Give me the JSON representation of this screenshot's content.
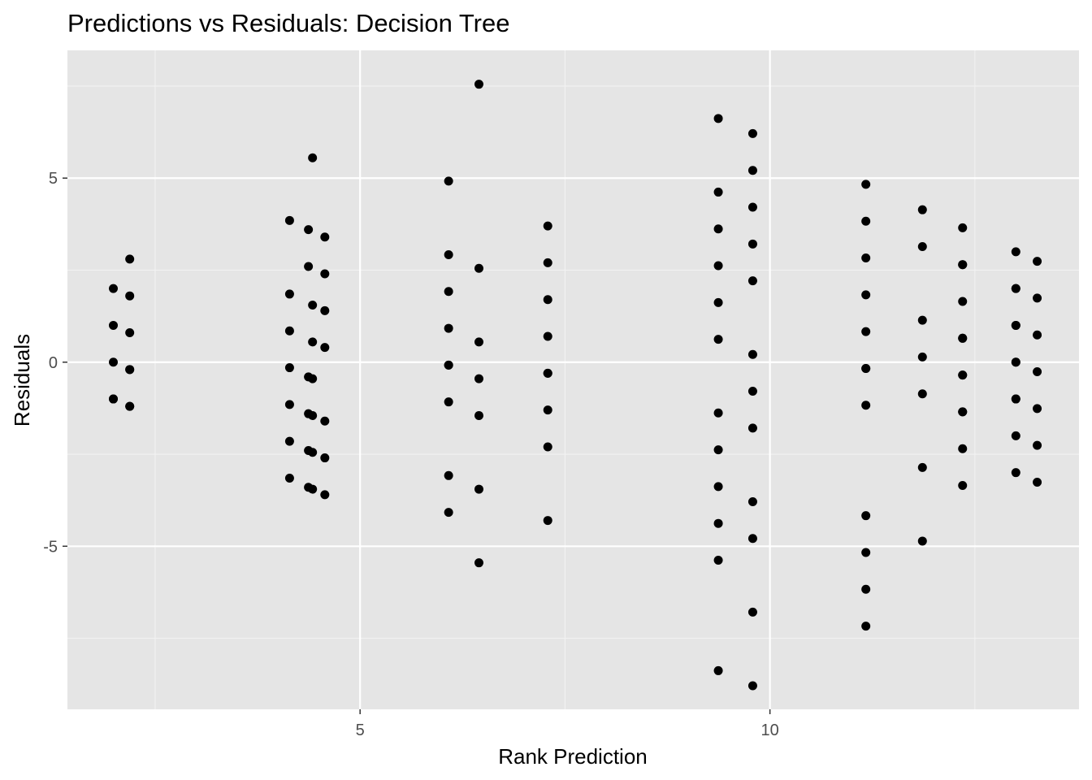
{
  "chart_data": {
    "type": "scatter",
    "title": "Predictions vs Residuals: Decision Tree",
    "xlabel": "Rank Prediction",
    "ylabel": "Residuals",
    "xlim": [
      1.43,
      13.77
    ],
    "ylim": [
      -9.43,
      8.47
    ],
    "x_major_ticks": [
      5,
      10
    ],
    "x_tick_labels": [
      "5",
      "10"
    ],
    "x_minor_ticks": [
      2.5,
      7.5,
      12.5
    ],
    "y_major_ticks": [
      -5,
      0,
      5
    ],
    "y_tick_labels": [
      "-5",
      "0",
      "5"
    ],
    "y_minor_ticks": [
      -7.5,
      -2.5,
      2.5,
      7.5
    ],
    "grid": true,
    "colors": {
      "panel_background": "#e5e5e5",
      "grid_major": "#ffffff",
      "grid_minor": "#f2f2f2",
      "point": "#000000",
      "tick_text": "#4d4d4d",
      "tick_mark": "#333333"
    },
    "series": [
      {
        "points": [
          [
            1.99,
            2.0
          ],
          [
            1.99,
            1.0
          ],
          [
            1.99,
            0.0
          ],
          [
            1.99,
            -1.0
          ],
          [
            1.99,
            -1.0
          ],
          [
            2.19,
            2.8
          ],
          [
            2.19,
            1.8
          ],
          [
            2.19,
            0.8
          ],
          [
            2.19,
            -0.2
          ],
          [
            2.19,
            -0.2
          ],
          [
            2.19,
            -1.2
          ],
          [
            2.19,
            -1.2
          ],
          [
            4.14,
            3.85
          ],
          [
            4.14,
            1.85
          ],
          [
            4.14,
            0.85
          ],
          [
            4.14,
            -0.15
          ],
          [
            4.14,
            -1.15
          ],
          [
            4.14,
            -2.15
          ],
          [
            4.14,
            -3.15
          ],
          [
            4.37,
            3.6
          ],
          [
            4.37,
            2.6
          ],
          [
            4.37,
            -0.4
          ],
          [
            4.37,
            -1.4
          ],
          [
            4.37,
            -2.4
          ],
          [
            4.37,
            -3.4
          ],
          [
            4.42,
            5.55
          ],
          [
            4.42,
            1.55
          ],
          [
            4.42,
            0.55
          ],
          [
            4.42,
            -0.45
          ],
          [
            4.42,
            -1.45
          ],
          [
            4.42,
            -2.45
          ],
          [
            4.42,
            -3.45
          ],
          [
            4.57,
            3.4
          ],
          [
            4.57,
            2.4
          ],
          [
            4.57,
            1.4
          ],
          [
            4.57,
            0.4
          ],
          [
            4.57,
            -1.6
          ],
          [
            4.57,
            -2.6
          ],
          [
            4.57,
            -3.6
          ],
          [
            6.08,
            4.92
          ],
          [
            6.08,
            2.92
          ],
          [
            6.08,
            1.92
          ],
          [
            6.08,
            0.92
          ],
          [
            6.08,
            -0.08
          ],
          [
            6.08,
            -0.08
          ],
          [
            6.08,
            -1.08
          ],
          [
            6.08,
            -3.08
          ],
          [
            6.08,
            -4.08
          ],
          [
            6.45,
            7.55
          ],
          [
            6.45,
            2.55
          ],
          [
            6.45,
            0.55
          ],
          [
            6.45,
            -0.45
          ],
          [
            6.45,
            -1.45
          ],
          [
            6.45,
            -3.45
          ],
          [
            6.45,
            -5.45
          ],
          [
            7.29,
            3.7
          ],
          [
            7.29,
            2.7
          ],
          [
            7.29,
            1.7
          ],
          [
            7.29,
            0.7
          ],
          [
            7.29,
            -0.3
          ],
          [
            7.29,
            -0.3
          ],
          [
            7.29,
            -1.3
          ],
          [
            7.29,
            -2.3
          ],
          [
            7.29,
            -4.3
          ],
          [
            9.37,
            6.62
          ],
          [
            9.37,
            4.62
          ],
          [
            9.37,
            3.62
          ],
          [
            9.37,
            2.62
          ],
          [
            9.37,
            1.62
          ],
          [
            9.37,
            0.62
          ],
          [
            9.37,
            -1.38
          ],
          [
            9.37,
            -2.38
          ],
          [
            9.37,
            -3.38
          ],
          [
            9.37,
            -4.38
          ],
          [
            9.37,
            -5.38
          ],
          [
            9.37,
            -8.38
          ],
          [
            9.79,
            6.21
          ],
          [
            9.79,
            5.21
          ],
          [
            9.79,
            4.21
          ],
          [
            9.79,
            3.21
          ],
          [
            9.79,
            2.21
          ],
          [
            9.79,
            0.21
          ],
          [
            9.79,
            -0.79
          ],
          [
            9.79,
            -1.79
          ],
          [
            9.79,
            -3.79
          ],
          [
            9.79,
            -4.79
          ],
          [
            9.79,
            -6.79
          ],
          [
            9.79,
            -8.79
          ],
          [
            11.17,
            4.83
          ],
          [
            11.17,
            3.83
          ],
          [
            11.17,
            2.83
          ],
          [
            11.17,
            1.83
          ],
          [
            11.17,
            0.83
          ],
          [
            11.17,
            -0.17
          ],
          [
            11.17,
            -0.17
          ],
          [
            11.17,
            -1.17
          ],
          [
            11.17,
            -4.17
          ],
          [
            11.17,
            -5.17
          ],
          [
            11.17,
            -6.17
          ],
          [
            11.17,
            -7.17
          ],
          [
            11.86,
            4.14
          ],
          [
            11.86,
            3.14
          ],
          [
            11.86,
            1.14
          ],
          [
            11.86,
            0.14
          ],
          [
            11.86,
            -0.86
          ],
          [
            11.86,
            -2.86
          ],
          [
            11.86,
            -4.86
          ],
          [
            12.35,
            3.65
          ],
          [
            12.35,
            2.65
          ],
          [
            12.35,
            2.65
          ],
          [
            12.35,
            1.65
          ],
          [
            12.35,
            0.65
          ],
          [
            12.35,
            0.65
          ],
          [
            12.35,
            -0.35
          ],
          [
            12.35,
            -0.35
          ],
          [
            12.35,
            -1.35
          ],
          [
            12.35,
            -1.35
          ],
          [
            12.35,
            -2.35
          ],
          [
            12.35,
            -3.35
          ],
          [
            13.0,
            3.0
          ],
          [
            13.0,
            2.0
          ],
          [
            13.0,
            2.0
          ],
          [
            13.0,
            1.0
          ],
          [
            13.0,
            1.0
          ],
          [
            13.0,
            0.0
          ],
          [
            13.0,
            0.0
          ],
          [
            13.0,
            -1.0
          ],
          [
            13.0,
            -1.0
          ],
          [
            13.0,
            -2.0
          ],
          [
            13.0,
            -3.0
          ],
          [
            13.26,
            2.74
          ],
          [
            13.26,
            1.74
          ],
          [
            13.26,
            0.74
          ],
          [
            13.26,
            -0.26
          ],
          [
            13.26,
            -1.26
          ],
          [
            13.26,
            -2.26
          ],
          [
            13.26,
            -3.26
          ]
        ]
      }
    ]
  }
}
